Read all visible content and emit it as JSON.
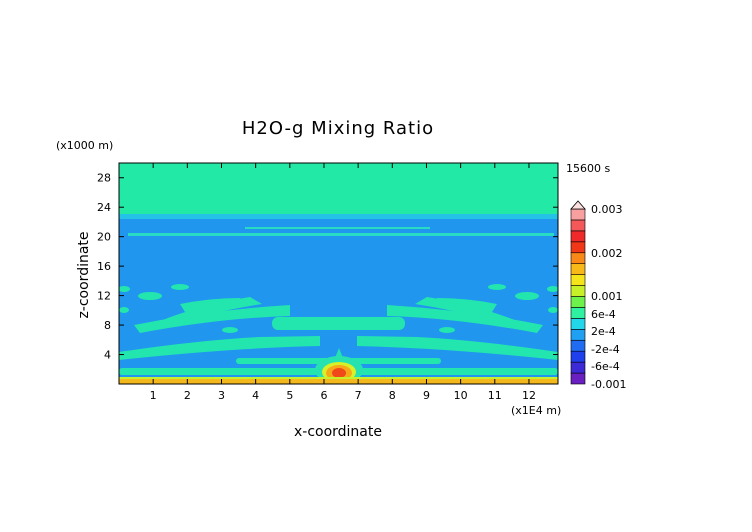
{
  "chart_data": {
    "type": "heatmap",
    "title": "H2O-g Mixing Ratio",
    "xlabel": "x-coordinate",
    "ylabel": "z-coordinate",
    "x_scale_label": "(x1E4 m)",
    "y_scale_label": "(x1000 m)",
    "time_label": "15600 s",
    "xlim": [
      0,
      12.85
    ],
    "ylim": [
      0,
      30
    ],
    "x_ticks": [
      "1",
      "2",
      "3",
      "4",
      "5",
      "6",
      "7",
      "8",
      "9",
      "10",
      "11",
      "12"
    ],
    "y_ticks": [
      "4",
      "8",
      "12",
      "16",
      "20",
      "24",
      "28"
    ],
    "colorbar": {
      "levels": [
        "-0.001",
        "-8e-4",
        "-6e-4",
        "-4e-4",
        "-2e-4",
        "0",
        "2e-4",
        "4e-4",
        "6e-4",
        "8e-4",
        "0.001",
        "0.0015",
        "0.002",
        "0.0025",
        "0.003"
      ],
      "tick_labels": [
        "0.003",
        "0.002",
        "0.001",
        "6e-4",
        "2e-4",
        "-2e-4",
        "-6e-4",
        "-0.001"
      ],
      "colors": [
        "#6a1fc0",
        "#3c2ad6",
        "#2040ee",
        "#1f6cf2",
        "#20a0f2",
        "#22d7ea",
        "#2ef2a0",
        "#6cf24a",
        "#c8f028",
        "#f6e41a",
        "#f8b818",
        "#f88818",
        "#f03818",
        "#f02a2a",
        "#f45858",
        "#f8a0a0"
      ]
    },
    "regions": [
      {
        "feature": "upper layer",
        "z": [
          22.0,
          30.0
        ],
        "level": "0 to 2e-4"
      },
      {
        "feature": "lower layer",
        "z": [
          0.7,
          22.0
        ],
        "level": "-2e-4 to 0"
      },
      {
        "feature": "thin band",
        "z": [
          20.2,
          20.5
        ],
        "level": "0 to 2e-4"
      },
      {
        "feature": "surface layer",
        "z": [
          0,
          0.5
        ],
        "level": "8e-4 to 0.001"
      },
      {
        "feature": "central plume",
        "x": 6.4,
        "z": [
          0.6,
          3.0
        ],
        "level": "up to 0.0015"
      }
    ]
  }
}
